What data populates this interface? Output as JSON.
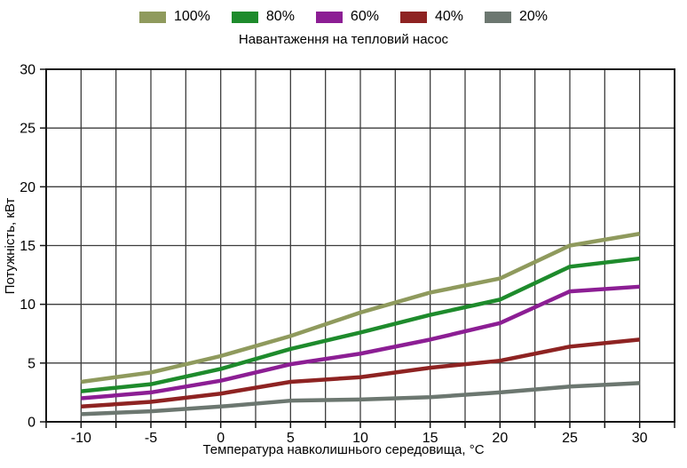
{
  "title": "Навантаження на тепловий насос",
  "chart_data": {
    "type": "line",
    "title": "Навантаження на тепловий насос",
    "xlabel": "Температура навколишнього середовища, °C",
    "ylabel": "Потужність, кВт",
    "x": [
      -10,
      -5,
      0,
      5,
      10,
      15,
      20,
      25,
      30
    ],
    "series": [
      {
        "name": "100%",
        "color": "#8F9A5D",
        "values": [
          3.4,
          4.2,
          5.6,
          7.3,
          9.3,
          11.0,
          12.2,
          15.0,
          16.0
        ]
      },
      {
        "name": "80%",
        "color": "#1E8B2C",
        "values": [
          2.6,
          3.2,
          4.5,
          6.2,
          7.6,
          9.1,
          10.4,
          13.2,
          13.9
        ]
      },
      {
        "name": "60%",
        "color": "#8C1E94",
        "values": [
          2.0,
          2.5,
          3.5,
          4.9,
          5.8,
          7.0,
          8.4,
          11.1,
          11.5
        ]
      },
      {
        "name": "40%",
        "color": "#8E2322",
        "values": [
          1.3,
          1.7,
          2.4,
          3.4,
          3.8,
          4.6,
          5.2,
          6.4,
          7.0
        ]
      },
      {
        "name": "20%",
        "color": "#6C7770",
        "values": [
          0.65,
          0.9,
          1.3,
          1.8,
          1.9,
          2.1,
          2.5,
          3.0,
          3.3
        ]
      }
    ],
    "xlim": [
      -12.5,
      32.5
    ],
    "ylim": [
      0,
      30
    ],
    "x_grid_step": 2.5,
    "y_grid_step": 5,
    "x_tick_labels": [
      "-10",
      "-5",
      "0",
      "5",
      "10",
      "15",
      "20",
      "25",
      "30"
    ],
    "x_tick_values": [
      -10,
      -5,
      0,
      5,
      10,
      15,
      20,
      25,
      30
    ],
    "y_tick_labels": [
      "0",
      "5",
      "10",
      "15",
      "20",
      "25",
      "30"
    ],
    "y_tick_values": [
      0,
      5,
      10,
      15,
      20,
      25,
      30
    ],
    "grid": true,
    "legend_position": "top",
    "line_width": 4.5,
    "grid_color": "#3D3D3D",
    "axis_color": "#161616",
    "text_color": "#000000"
  }
}
